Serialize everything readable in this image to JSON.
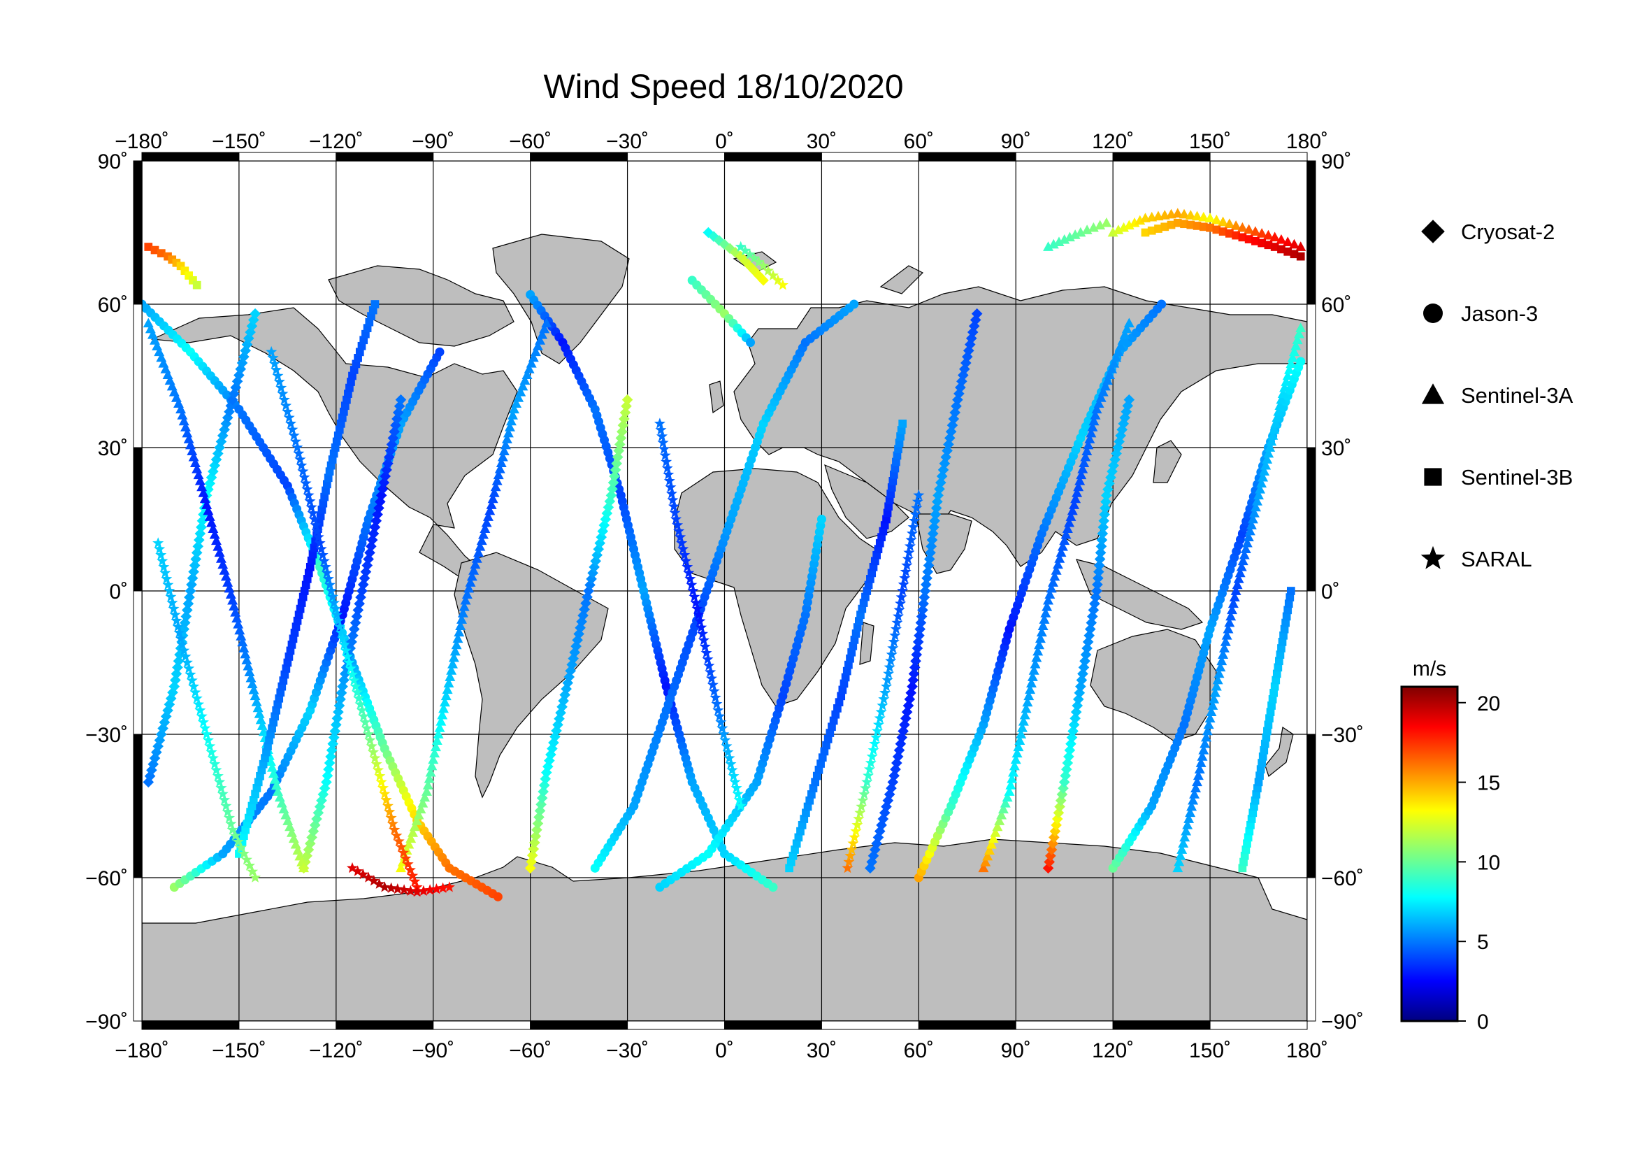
{
  "chart_data": {
    "type": "scatter",
    "title": "Wind Speed 18/10/2020",
    "projection": "equirectangular",
    "xlim": [
      -180,
      180
    ],
    "ylim": [
      -90,
      90
    ],
    "x_ticks": [
      -180,
      -150,
      -120,
      -90,
      -60,
      -30,
      0,
      30,
      60,
      90,
      120,
      150,
      180
    ],
    "y_ticks": [
      90,
      60,
      30,
      0,
      -30,
      -60,
      -90
    ],
    "degree_symbol": "˚",
    "gridlines": true,
    "land_color": "#bebebe",
    "ocean_color": "#ffffff",
    "legend": [
      {
        "name": "Cryosat-2",
        "marker": "diamond"
      },
      {
        "name": "Jason-3",
        "marker": "circle"
      },
      {
        "name": "Sentinel-3A",
        "marker": "triangle"
      },
      {
        "name": "Sentinel-3B",
        "marker": "square"
      },
      {
        "name": "SARAL",
        "marker": "star"
      }
    ],
    "legend_position": "right",
    "colorbar": {
      "label": "m/s",
      "min": 0,
      "max": 21,
      "ticks": [
        20,
        15,
        10,
        5,
        0
      ],
      "colormap": "jet"
    },
    "tracks": [
      {
        "marker": "circle",
        "points": [
          [
            -180,
            60,
            6
          ],
          [
            -165,
            50,
            8
          ],
          [
            -150,
            38,
            5
          ],
          [
            -135,
            22,
            4
          ],
          [
            -125,
            5,
            9
          ],
          [
            -115,
            -15,
            6
          ],
          [
            -105,
            -33,
            10
          ],
          [
            -95,
            -48,
            14
          ],
          [
            -85,
            -58,
            16
          ],
          [
            -70,
            -64,
            17
          ]
        ]
      },
      {
        "marker": "circle",
        "points": [
          [
            -170,
            -62,
            11
          ],
          [
            -155,
            -55,
            6
          ],
          [
            -140,
            -42,
            5
          ],
          [
            -128,
            -25,
            7
          ],
          [
            -118,
            -5,
            3
          ],
          [
            -110,
            15,
            5
          ],
          [
            -100,
            35,
            6
          ],
          [
            -88,
            50,
            4
          ]
        ]
      },
      {
        "marker": "circle",
        "points": [
          [
            -60,
            62,
            6
          ],
          [
            -50,
            52,
            3
          ],
          [
            -40,
            38,
            5
          ],
          [
            -32,
            20,
            4
          ],
          [
            -25,
            0,
            6
          ],
          [
            -18,
            -20,
            3
          ],
          [
            -10,
            -40,
            6
          ],
          [
            0,
            -55,
            7
          ],
          [
            15,
            -62,
            9
          ]
        ]
      },
      {
        "marker": "circle",
        "points": [
          [
            -40,
            -58,
            8
          ],
          [
            -28,
            -45,
            6
          ],
          [
            -18,
            -25,
            5
          ],
          [
            -8,
            -5,
            4
          ],
          [
            2,
            15,
            6
          ],
          [
            12,
            35,
            7
          ],
          [
            25,
            52,
            5
          ],
          [
            40,
            60,
            6
          ]
        ]
      },
      {
        "marker": "circle",
        "points": [
          [
            60,
            -60,
            15
          ],
          [
            70,
            -45,
            9
          ],
          [
            80,
            -28,
            6
          ],
          [
            88,
            -8,
            3
          ],
          [
            98,
            12,
            5
          ],
          [
            110,
            32,
            7
          ],
          [
            122,
            50,
            6
          ],
          [
            135,
            60,
            5
          ]
        ]
      },
      {
        "marker": "circle",
        "points": [
          [
            120,
            -58,
            10
          ],
          [
            132,
            -45,
            6
          ],
          [
            142,
            -28,
            5
          ],
          [
            150,
            -8,
            6
          ],
          [
            160,
            12,
            4
          ],
          [
            168,
            30,
            6
          ],
          [
            178,
            48,
            8
          ]
        ]
      },
      {
        "marker": "circle",
        "points": [
          [
            -20,
            -62,
            7
          ],
          [
            -5,
            -55,
            8
          ],
          [
            10,
            -40,
            6
          ],
          [
            18,
            -22,
            4
          ],
          [
            25,
            -5,
            5
          ],
          [
            30,
            15,
            7
          ]
        ]
      },
      {
        "marker": "circle",
        "points": [
          [
            -10,
            65,
            9
          ],
          [
            0,
            58,
            11
          ],
          [
            8,
            52,
            6
          ]
        ]
      },
      {
        "marker": "diamond",
        "points": [
          [
            -178,
            -40,
            5
          ],
          [
            -170,
            -20,
            7
          ],
          [
            -165,
            0,
            6
          ],
          [
            -160,
            20,
            8
          ],
          [
            -152,
            40,
            5
          ],
          [
            -145,
            58,
            7
          ]
        ]
      },
      {
        "marker": "diamond",
        "points": [
          [
            -130,
            -58,
            12
          ],
          [
            -123,
            -40,
            8
          ],
          [
            -118,
            -20,
            6
          ],
          [
            -112,
            0,
            4
          ],
          [
            -106,
            20,
            3
          ],
          [
            -100,
            40,
            5
          ]
        ]
      },
      {
        "marker": "diamond",
        "points": [
          [
            45,
            -58,
            5
          ],
          [
            52,
            -40,
            4
          ],
          [
            58,
            -20,
            3
          ],
          [
            62,
            0,
            5
          ],
          [
            66,
            20,
            6
          ],
          [
            72,
            40,
            5
          ],
          [
            78,
            58,
            4
          ]
        ]
      },
      {
        "marker": "diamond",
        "points": [
          [
            -60,
            -58,
            13
          ],
          [
            -55,
            -38,
            8
          ],
          [
            -48,
            -18,
            6
          ],
          [
            -42,
            0,
            5
          ],
          [
            -35,
            20,
            9
          ],
          [
            -30,
            40,
            12
          ]
        ]
      },
      {
        "marker": "diamond",
        "points": [
          [
            100,
            -58,
            18
          ],
          [
            105,
            -40,
            9
          ],
          [
            110,
            -20,
            6
          ],
          [
            115,
            0,
            5
          ],
          [
            118,
            20,
            7
          ],
          [
            125,
            40,
            6
          ]
        ]
      },
      {
        "marker": "diamond",
        "points": [
          [
            -5,
            75,
            8
          ],
          [
            5,
            70,
            12
          ],
          [
            12,
            65,
            13
          ]
        ]
      },
      {
        "marker": "triangle",
        "points": [
          [
            -178,
            56,
            6
          ],
          [
            -168,
            38,
            5
          ],
          [
            -160,
            18,
            3
          ],
          [
            -152,
            -2,
            4
          ],
          [
            -145,
            -22,
            6
          ],
          [
            -138,
            -42,
            9
          ],
          [
            -130,
            -58,
            12
          ]
        ]
      },
      {
        "marker": "triangle",
        "points": [
          [
            -100,
            -58,
            13
          ],
          [
            -92,
            -42,
            10
          ],
          [
            -86,
            -22,
            7
          ],
          [
            -80,
            -2,
            5
          ],
          [
            -72,
            18,
            4
          ],
          [
            -65,
            38,
            6
          ],
          [
            -55,
            56,
            5
          ]
        ]
      },
      {
        "marker": "triangle",
        "points": [
          [
            80,
            -58,
            16
          ],
          [
            88,
            -42,
            8
          ],
          [
            94,
            -22,
            6
          ],
          [
            100,
            -2,
            5
          ],
          [
            108,
            18,
            4
          ],
          [
            115,
            38,
            5
          ],
          [
            125,
            56,
            6
          ]
        ]
      },
      {
        "marker": "triangle",
        "points": [
          [
            140,
            -58,
            7
          ],
          [
            146,
            -40,
            5
          ],
          [
            152,
            -20,
            6
          ],
          [
            158,
            0,
            4
          ],
          [
            165,
            20,
            6
          ],
          [
            172,
            40,
            7
          ],
          [
            178,
            55,
            9
          ]
        ]
      },
      {
        "marker": "triangle",
        "points": [
          [
            120,
            75,
            12
          ],
          [
            130,
            78,
            14
          ],
          [
            140,
            79,
            15
          ],
          [
            150,
            78,
            13
          ],
          [
            160,
            76,
            16
          ],
          [
            170,
            74,
            18
          ],
          [
            178,
            72,
            19
          ]
        ]
      },
      {
        "marker": "triangle",
        "points": [
          [
            100,
            72,
            9
          ],
          [
            110,
            75,
            10
          ],
          [
            118,
            77,
            11
          ]
        ]
      },
      {
        "marker": "square",
        "points": [
          [
            -178,
            72,
            17
          ],
          [
            -172,
            70,
            16
          ],
          [
            -168,
            68,
            14
          ],
          [
            -163,
            64,
            12
          ]
        ]
      },
      {
        "marker": "square",
        "points": [
          [
            -150,
            -55,
            8
          ],
          [
            -142,
            -35,
            6
          ],
          [
            -135,
            -15,
            4
          ],
          [
            -128,
            5,
            3
          ],
          [
            -122,
            25,
            5
          ],
          [
            -115,
            45,
            4
          ],
          [
            -108,
            60,
            5
          ]
        ]
      },
      {
        "marker": "square",
        "points": [
          [
            20,
            -58,
            7
          ],
          [
            28,
            -40,
            5
          ],
          [
            36,
            -22,
            4
          ],
          [
            42,
            -5,
            5
          ],
          [
            50,
            15,
            3
          ],
          [
            55,
            35,
            6
          ]
        ]
      },
      {
        "marker": "square",
        "points": [
          [
            130,
            75,
            14
          ],
          [
            140,
            77,
            15
          ],
          [
            150,
            76,
            16
          ],
          [
            160,
            74,
            18
          ],
          [
            170,
            72,
            19
          ],
          [
            178,
            70,
            20
          ]
        ]
      },
      {
        "marker": "square",
        "points": [
          [
            160,
            -58,
            9
          ],
          [
            165,
            -40,
            6
          ],
          [
            170,
            -20,
            7
          ],
          [
            175,
            0,
            5
          ]
        ]
      },
      {
        "marker": "star",
        "points": [
          [
            -175,
            10,
            7
          ],
          [
            -168,
            -10,
            6
          ],
          [
            -160,
            -30,
            8
          ],
          [
            -152,
            -50,
            10
          ],
          [
            -145,
            -60,
            11
          ]
        ]
      },
      {
        "marker": "star",
        "points": [
          [
            -140,
            50,
            6
          ],
          [
            -132,
            30,
            5
          ],
          [
            -125,
            10,
            4
          ],
          [
            -118,
            -10,
            7
          ],
          [
            -110,
            -30,
            10
          ],
          [
            -102,
            -50,
            16
          ],
          [
            -95,
            -62,
            18
          ]
        ]
      },
      {
        "marker": "star",
        "points": [
          [
            -20,
            35,
            5
          ],
          [
            -15,
            15,
            4
          ],
          [
            -8,
            -5,
            3
          ],
          [
            -2,
            -25,
            5
          ],
          [
            5,
            -45,
            8
          ]
        ]
      },
      {
        "marker": "star",
        "points": [
          [
            5,
            72,
            9
          ],
          [
            12,
            68,
            11
          ],
          [
            18,
            64,
            13
          ]
        ]
      },
      {
        "marker": "star",
        "points": [
          [
            38,
            -58,
            16
          ],
          [
            44,
            -40,
            9
          ],
          [
            50,
            -20,
            6
          ],
          [
            55,
            0,
            4
          ],
          [
            60,
            20,
            5
          ]
        ]
      },
      {
        "marker": "star",
        "points": [
          [
            -115,
            -58,
            19
          ],
          [
            -105,
            -62,
            20
          ],
          [
            -95,
            -63,
            19
          ],
          [
            -85,
            -62,
            18
          ]
        ]
      }
    ]
  }
}
